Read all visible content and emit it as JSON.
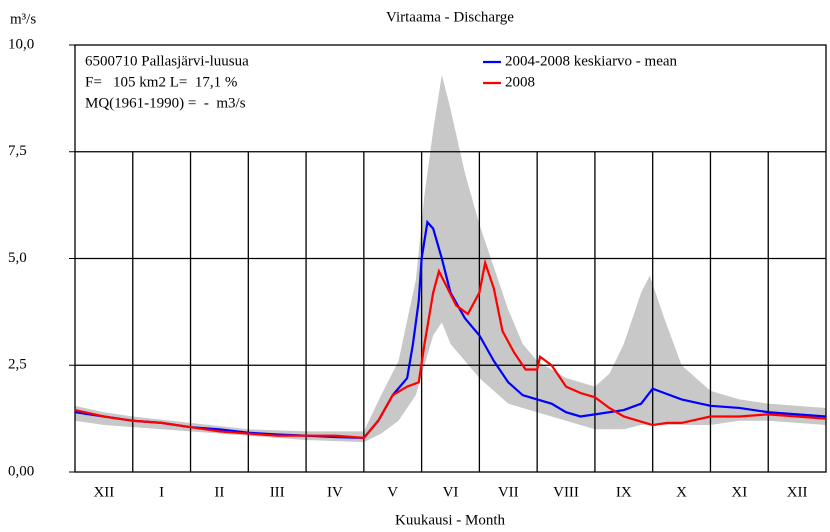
{
  "chart_data": {
    "type": "line",
    "title": "Virtaama - Discharge",
    "y_label": "m³/s",
    "x_label": "Kuukausi - Month",
    "annotations": [
      "6500710 Pallasjärvi-luusua",
      "F=   105 km2 L=  17,1 %",
      "MQ(1961-1990) =  -  m3/s"
    ],
    "categories": [
      "XII",
      "I",
      "II",
      "III",
      "IV",
      "V",
      "VI",
      "VII",
      "VIII",
      "IX",
      "X",
      "XI",
      "XII"
    ],
    "xlim": [
      0,
      13
    ],
    "ylim": [
      0,
      10
    ],
    "yticks": [
      {
        "value": 0,
        "label": "0,00"
      },
      {
        "value": 2.5,
        "label": "2,5"
      },
      {
        "value": 5,
        "label": "5,0"
      },
      {
        "value": 7.5,
        "label": "7,5"
      },
      {
        "value": 10,
        "label": "10,0"
      }
    ],
    "grid": true,
    "range": {
      "color": "#c8c8c8",
      "x": [
        0,
        0.5,
        1,
        2,
        3,
        4,
        5,
        5.3,
        5.6,
        5.9,
        6.05,
        6.2,
        6.35,
        6.5,
        6.75,
        7,
        7.25,
        7.5,
        7.75,
        8,
        8.5,
        9,
        9.25,
        9.5,
        9.8,
        9.95,
        10.2,
        10.5,
        11,
        11.5,
        12,
        13
      ],
      "lower": [
        1.2,
        1.1,
        1.05,
        0.95,
        0.85,
        0.75,
        0.7,
        0.9,
        1.2,
        1.8,
        2.5,
        3.2,
        3.5,
        3.0,
        2.6,
        2.2,
        1.9,
        1.6,
        1.5,
        1.4,
        1.2,
        1.0,
        1.0,
        1.0,
        1.1,
        1.1,
        1.1,
        1.1,
        1.1,
        1.2,
        1.2,
        1.1
      ],
      "upper": [
        1.55,
        1.4,
        1.3,
        1.15,
        1.0,
        0.95,
        0.95,
        1.8,
        2.6,
        4.5,
        6.5,
        8.0,
        9.3,
        8.5,
        7.0,
        5.8,
        4.8,
        3.8,
        3.0,
        2.6,
        2.2,
        2.0,
        2.3,
        3.0,
        4.2,
        4.6,
        3.6,
        2.5,
        1.9,
        1.7,
        1.6,
        1.5
      ]
    },
    "series": [
      {
        "name": "2004-2008 keskiarvo - mean",
        "color": "#0000ff",
        "x": [
          0,
          0.5,
          1,
          1.5,
          2,
          2.5,
          3,
          3.5,
          4,
          4.5,
          5,
          5.25,
          5.5,
          5.75,
          5.85,
          5.95,
          6,
          6.1,
          6.2,
          6.35,
          6.5,
          6.75,
          7,
          7.25,
          7.5,
          7.75,
          8,
          8.25,
          8.5,
          8.75,
          9,
          9.25,
          9.5,
          9.8,
          10,
          10.2,
          10.5,
          11,
          11.5,
          12,
          12.5,
          13
        ],
        "values": [
          1.4,
          1.3,
          1.2,
          1.15,
          1.05,
          1.0,
          0.92,
          0.88,
          0.85,
          0.82,
          0.8,
          1.2,
          1.8,
          2.2,
          3.0,
          4.0,
          5.0,
          5.85,
          5.7,
          5.0,
          4.2,
          3.6,
          3.2,
          2.6,
          2.1,
          1.8,
          1.7,
          1.6,
          1.4,
          1.3,
          1.35,
          1.4,
          1.45,
          1.6,
          1.95,
          1.85,
          1.7,
          1.55,
          1.5,
          1.4,
          1.35,
          1.3
        ]
      },
      {
        "name": "2008",
        "color": "#ff0000",
        "x": [
          0,
          0.5,
          1,
          1.5,
          2,
          2.5,
          3,
          3.5,
          4,
          4.5,
          5,
          5.25,
          5.5,
          5.75,
          5.95,
          6.05,
          6.2,
          6.3,
          6.45,
          6.6,
          6.8,
          7,
          7.1,
          7.25,
          7.4,
          7.6,
          7.8,
          8,
          8.05,
          8.25,
          8.5,
          8.75,
          9,
          9.25,
          9.5,
          9.75,
          10,
          10.25,
          10.5,
          11,
          11.5,
          12,
          12.5,
          13
        ],
        "values": [
          1.45,
          1.3,
          1.2,
          1.15,
          1.05,
          0.95,
          0.9,
          0.85,
          0.85,
          0.85,
          0.8,
          1.2,
          1.8,
          2.0,
          2.1,
          3.0,
          4.2,
          4.7,
          4.3,
          3.9,
          3.7,
          4.2,
          4.9,
          4.3,
          3.3,
          2.8,
          2.4,
          2.4,
          2.7,
          2.5,
          2.0,
          1.85,
          1.75,
          1.5,
          1.3,
          1.2,
          1.1,
          1.15,
          1.15,
          1.3,
          1.3,
          1.35,
          1.3,
          1.25
        ]
      }
    ]
  }
}
